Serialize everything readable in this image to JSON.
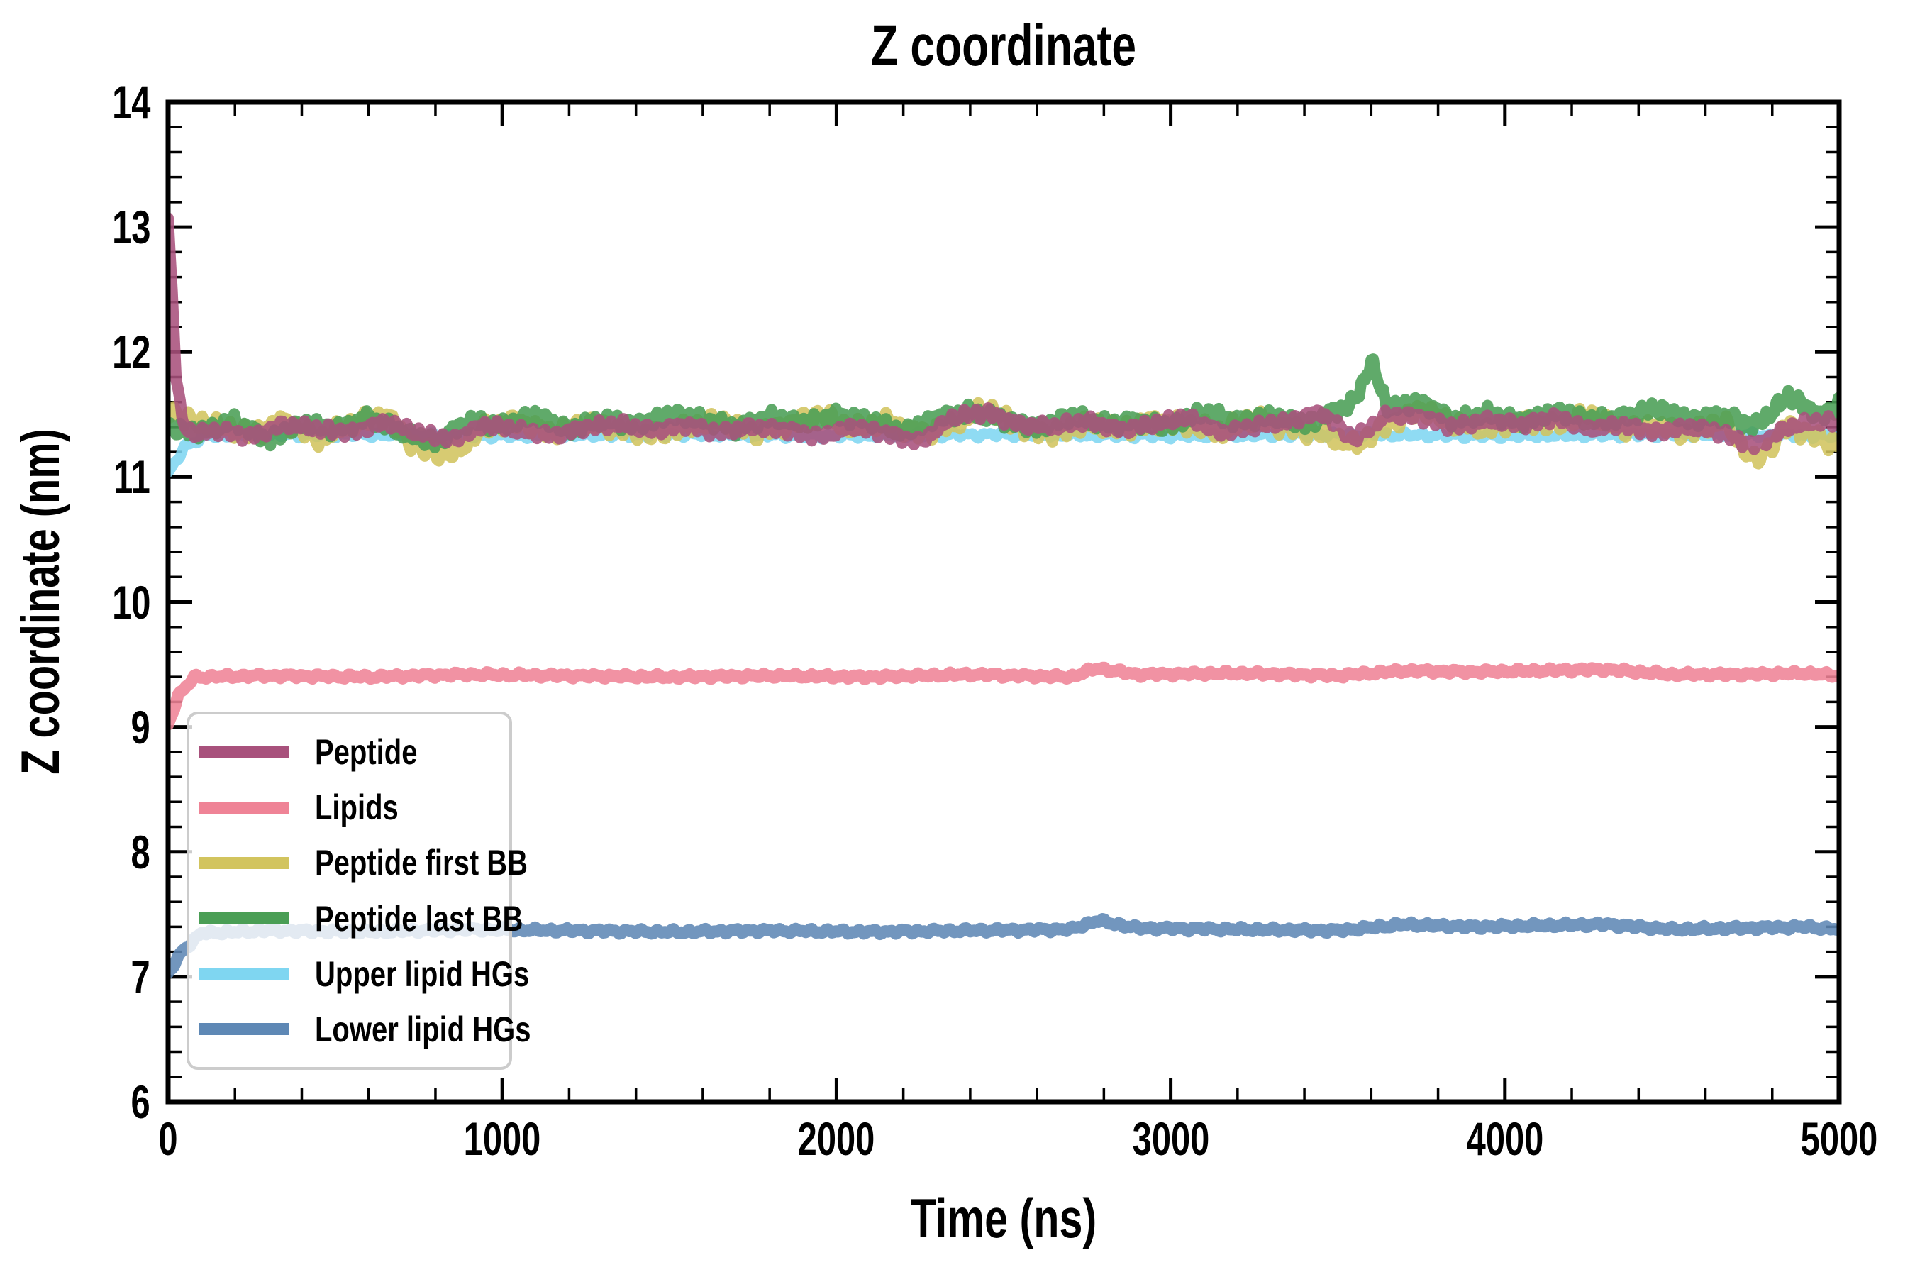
{
  "chart_data": {
    "type": "line",
    "title": "Z coordinate",
    "xlabel": "Time (ns)",
    "ylabel": "Z coordinate (nm)",
    "xlim": [
      0,
      5000
    ],
    "ylim": [
      6,
      14
    ],
    "xticks": [
      0,
      1000,
      2000,
      3000,
      4000,
      5000
    ],
    "yticks": [
      6,
      7,
      8,
      9,
      10,
      11,
      12,
      13,
      14
    ],
    "minor_x_step": 200,
    "minor_y_step": 0.2,
    "grid": false,
    "tick_direction": "in",
    "legend_position": "lower left",
    "legend_border_color": "#cccccc",
    "axis_color": "#000000",
    "series": [
      {
        "name": "Peptide",
        "color": "#a8517c",
        "line_width": 16,
        "z": 6,
        "mean_nm": 11.39,
        "start_nm": 13.05,
        "noise": {
          "amp": 0.055,
          "period": 34,
          "seed": 1.3
        },
        "anchors": [
          [
            0,
            13.05
          ],
          [
            10,
            12.6
          ],
          [
            25,
            11.75
          ],
          [
            45,
            11.42
          ],
          [
            80,
            11.34
          ],
          [
            150,
            11.37
          ],
          [
            250,
            11.33
          ],
          [
            350,
            11.42
          ],
          [
            450,
            11.38
          ],
          [
            550,
            11.36
          ],
          [
            650,
            11.44
          ],
          [
            750,
            11.35
          ],
          [
            850,
            11.3
          ],
          [
            950,
            11.42
          ],
          [
            1050,
            11.37
          ],
          [
            1150,
            11.33
          ],
          [
            1250,
            11.4
          ],
          [
            1350,
            11.42
          ],
          [
            1450,
            11.37
          ],
          [
            1550,
            11.42
          ],
          [
            1650,
            11.35
          ],
          [
            1750,
            11.4
          ],
          [
            1850,
            11.38
          ],
          [
            1950,
            11.32
          ],
          [
            2050,
            11.4
          ],
          [
            2150,
            11.35
          ],
          [
            2250,
            11.28
          ],
          [
            2350,
            11.48
          ],
          [
            2450,
            11.52
          ],
          [
            2550,
            11.42
          ],
          [
            2650,
            11.4
          ],
          [
            2750,
            11.45
          ],
          [
            2850,
            11.38
          ],
          [
            2950,
            11.42
          ],
          [
            3050,
            11.48
          ],
          [
            3150,
            11.36
          ],
          [
            3250,
            11.4
          ],
          [
            3350,
            11.44
          ],
          [
            3450,
            11.52
          ],
          [
            3550,
            11.3
          ],
          [
            3650,
            11.5
          ],
          [
            3750,
            11.48
          ],
          [
            3850,
            11.4
          ],
          [
            3950,
            11.45
          ],
          [
            4050,
            11.42
          ],
          [
            4150,
            11.48
          ],
          [
            4250,
            11.38
          ],
          [
            4350,
            11.42
          ],
          [
            4450,
            11.36
          ],
          [
            4550,
            11.4
          ],
          [
            4650,
            11.35
          ],
          [
            4750,
            11.25
          ],
          [
            4850,
            11.4
          ],
          [
            4950,
            11.45
          ],
          [
            5000,
            11.42
          ]
        ]
      },
      {
        "name": "Lipids",
        "color": "#ef8396",
        "line_width": 17,
        "z": 3,
        "mean_nm": 9.41,
        "start_nm": 9.02,
        "noise": {
          "amp": 0.022,
          "period": 46,
          "seed": 2.7
        },
        "anchors": [
          [
            0,
            9.02
          ],
          [
            30,
            9.25
          ],
          [
            80,
            9.4
          ],
          [
            300,
            9.41
          ],
          [
            600,
            9.4
          ],
          [
            900,
            9.42
          ],
          [
            1200,
            9.41
          ],
          [
            1500,
            9.4
          ],
          [
            1800,
            9.41
          ],
          [
            2100,
            9.4
          ],
          [
            2400,
            9.42
          ],
          [
            2700,
            9.4
          ],
          [
            2780,
            9.47
          ],
          [
            2900,
            9.42
          ],
          [
            3200,
            9.43
          ],
          [
            3500,
            9.41
          ],
          [
            3700,
            9.45
          ],
          [
            3900,
            9.44
          ],
          [
            4100,
            9.45
          ],
          [
            4300,
            9.46
          ],
          [
            4500,
            9.42
          ],
          [
            4700,
            9.42
          ],
          [
            4900,
            9.43
          ],
          [
            5000,
            9.41
          ]
        ]
      },
      {
        "name": "Peptide first BB",
        "color": "#d2c45e",
        "line_width": 16,
        "z": 4,
        "mean_nm": 11.38,
        "start_nm": 11.55,
        "noise": {
          "amp": 0.085,
          "period": 40,
          "seed": 4.1
        },
        "anchors": [
          [
            0,
            11.55
          ],
          [
            60,
            11.45
          ],
          [
            150,
            11.4
          ],
          [
            250,
            11.35
          ],
          [
            350,
            11.45
          ],
          [
            450,
            11.3
          ],
          [
            550,
            11.42
          ],
          [
            650,
            11.5
          ],
          [
            750,
            11.22
          ],
          [
            850,
            11.18
          ],
          [
            950,
            11.4
          ],
          [
            1050,
            11.45
          ],
          [
            1150,
            11.35
          ],
          [
            1250,
            11.42
          ],
          [
            1350,
            11.38
          ],
          [
            1450,
            11.35
          ],
          [
            1550,
            11.4
          ],
          [
            1650,
            11.45
          ],
          [
            1750,
            11.35
          ],
          [
            1850,
            11.42
          ],
          [
            1950,
            11.5
          ],
          [
            2050,
            11.38
          ],
          [
            2150,
            11.45
          ],
          [
            2250,
            11.35
          ],
          [
            2350,
            11.42
          ],
          [
            2450,
            11.55
          ],
          [
            2550,
            11.4
          ],
          [
            2650,
            11.35
          ],
          [
            2750,
            11.42
          ],
          [
            2850,
            11.38
          ],
          [
            2950,
            11.45
          ],
          [
            3050,
            11.42
          ],
          [
            3150,
            11.35
          ],
          [
            3250,
            11.48
          ],
          [
            3350,
            11.4
          ],
          [
            3450,
            11.35
          ],
          [
            3550,
            11.25
          ],
          [
            3650,
            11.42
          ],
          [
            3750,
            11.55
          ],
          [
            3850,
            11.42
          ],
          [
            3950,
            11.38
          ],
          [
            4050,
            11.45
          ],
          [
            4150,
            11.42
          ],
          [
            4250,
            11.5
          ],
          [
            4350,
            11.38
          ],
          [
            4450,
            11.42
          ],
          [
            4550,
            11.35
          ],
          [
            4650,
            11.45
          ],
          [
            4750,
            11.12
          ],
          [
            4850,
            11.42
          ],
          [
            4950,
            11.3
          ],
          [
            5000,
            11.25
          ]
        ]
      },
      {
        "name": "Peptide last BB",
        "color": "#4a9e55",
        "line_width": 16,
        "z": 5,
        "mean_nm": 11.46,
        "start_nm": 11.4,
        "noise": {
          "amp": 0.075,
          "period": 31,
          "seed": 5.9
        },
        "anchors": [
          [
            0,
            11.4
          ],
          [
            100,
            11.35
          ],
          [
            200,
            11.45
          ],
          [
            300,
            11.3
          ],
          [
            400,
            11.42
          ],
          [
            500,
            11.38
          ],
          [
            600,
            11.48
          ],
          [
            700,
            11.35
          ],
          [
            800,
            11.28
          ],
          [
            900,
            11.45
          ],
          [
            1000,
            11.4
          ],
          [
            1100,
            11.5
          ],
          [
            1200,
            11.38
          ],
          [
            1300,
            11.45
          ],
          [
            1400,
            11.42
          ],
          [
            1500,
            11.5
          ],
          [
            1600,
            11.45
          ],
          [
            1700,
            11.4
          ],
          [
            1800,
            11.48
          ],
          [
            1900,
            11.42
          ],
          [
            2000,
            11.5
          ],
          [
            2100,
            11.45
          ],
          [
            2200,
            11.35
          ],
          [
            2300,
            11.48
          ],
          [
            2400,
            11.52
          ],
          [
            2500,
            11.45
          ],
          [
            2600,
            11.4
          ],
          [
            2700,
            11.48
          ],
          [
            2800,
            11.42
          ],
          [
            2900,
            11.45
          ],
          [
            3000,
            11.4
          ],
          [
            3100,
            11.52
          ],
          [
            3200,
            11.45
          ],
          [
            3300,
            11.48
          ],
          [
            3400,
            11.42
          ],
          [
            3550,
            11.6
          ],
          [
            3600,
            11.92
          ],
          [
            3650,
            11.55
          ],
          [
            3750,
            11.6
          ],
          [
            3850,
            11.45
          ],
          [
            3950,
            11.5
          ],
          [
            4050,
            11.45
          ],
          [
            4150,
            11.52
          ],
          [
            4250,
            11.45
          ],
          [
            4350,
            11.48
          ],
          [
            4450,
            11.55
          ],
          [
            4550,
            11.45
          ],
          [
            4650,
            11.5
          ],
          [
            4750,
            11.4
          ],
          [
            4850,
            11.65
          ],
          [
            4950,
            11.48
          ],
          [
            5000,
            11.6
          ]
        ]
      },
      {
        "name": "Upper lipid HGs",
        "color": "#7fd6f1",
        "line_width": 15,
        "z": 2,
        "mean_nm": 11.33,
        "start_nm": 11.02,
        "noise": {
          "amp": 0.03,
          "period": 52,
          "seed": 7.2
        },
        "anchors": [
          [
            0,
            11.02
          ],
          [
            50,
            11.25
          ],
          [
            120,
            11.33
          ],
          [
            500,
            11.34
          ],
          [
            1000,
            11.33
          ],
          [
            1500,
            11.34
          ],
          [
            2000,
            11.33
          ],
          [
            2500,
            11.34
          ],
          [
            3000,
            11.33
          ],
          [
            3500,
            11.34
          ],
          [
            4000,
            11.33
          ],
          [
            4500,
            11.34
          ],
          [
            5000,
            11.33
          ]
        ]
      },
      {
        "name": "Lower lipid HGs",
        "color": "#5e88b5",
        "line_width": 17,
        "z": 1,
        "mean_nm": 7.38,
        "start_nm": 7.02,
        "noise": {
          "amp": 0.022,
          "period": 46,
          "seed": 8.8
        },
        "anchors": [
          [
            0,
            7.02
          ],
          [
            40,
            7.2
          ],
          [
            100,
            7.35
          ],
          [
            300,
            7.37
          ],
          [
            600,
            7.36
          ],
          [
            900,
            7.38
          ],
          [
            1200,
            7.37
          ],
          [
            1500,
            7.36
          ],
          [
            1800,
            7.37
          ],
          [
            2100,
            7.36
          ],
          [
            2400,
            7.37
          ],
          [
            2700,
            7.38
          ],
          [
            2780,
            7.45
          ],
          [
            2900,
            7.39
          ],
          [
            3200,
            7.38
          ],
          [
            3500,
            7.37
          ],
          [
            3700,
            7.42
          ],
          [
            3900,
            7.4
          ],
          [
            4100,
            7.41
          ],
          [
            4300,
            7.42
          ],
          [
            4500,
            7.38
          ],
          [
            4700,
            7.39
          ],
          [
            4900,
            7.4
          ],
          [
            5000,
            7.38
          ]
        ]
      }
    ]
  }
}
